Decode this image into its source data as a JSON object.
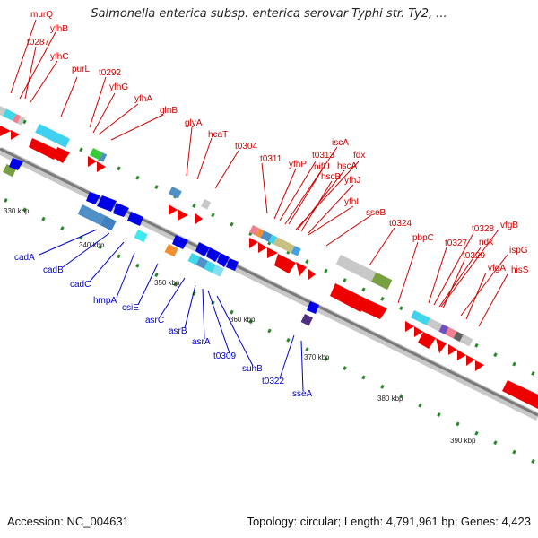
{
  "title": "Salmonella enterica subsp. enterica serovar Typhi str. Ty2, ...",
  "footer": {
    "accession": "Accession: NC_004631",
    "summary": "Topology: circular; Length: 4,791,961 bp; Genes: 4,423"
  },
  "colors": {
    "forward_label": "#cc0000",
    "reverse_label": "#0000cc",
    "backbone": "#909090"
  },
  "kbp_marks": [
    "330 kbp",
    "340 kbp",
    "350 kbp",
    "360 kbp",
    "370 kbp",
    "380 kbp",
    "390 kbp"
  ],
  "forward_genes": [
    "murQ",
    "yfhB",
    "t0287",
    "yfhC",
    "purL",
    "t0292",
    "yfhG",
    "yfhA",
    "glnB",
    "glyA",
    "hcaT",
    "t0304",
    "t0311",
    "yfhP",
    "t0313",
    "iscA",
    "nifU",
    "fdx",
    "hscA",
    "hscB",
    "yfhJ",
    "yfhI",
    "sseB",
    "t0324",
    "pbpC",
    "t0327",
    "t0328",
    "ndk",
    "vfgB",
    "t0329",
    "ispG",
    "vfgA",
    "hisS"
  ],
  "reverse_genes": [
    "cadA",
    "cadB",
    "cadC",
    "hmpA",
    "csiE",
    "asrC",
    "asrB",
    "asrA",
    "t0309",
    "suhB",
    "t0322",
    "sseA"
  ]
}
